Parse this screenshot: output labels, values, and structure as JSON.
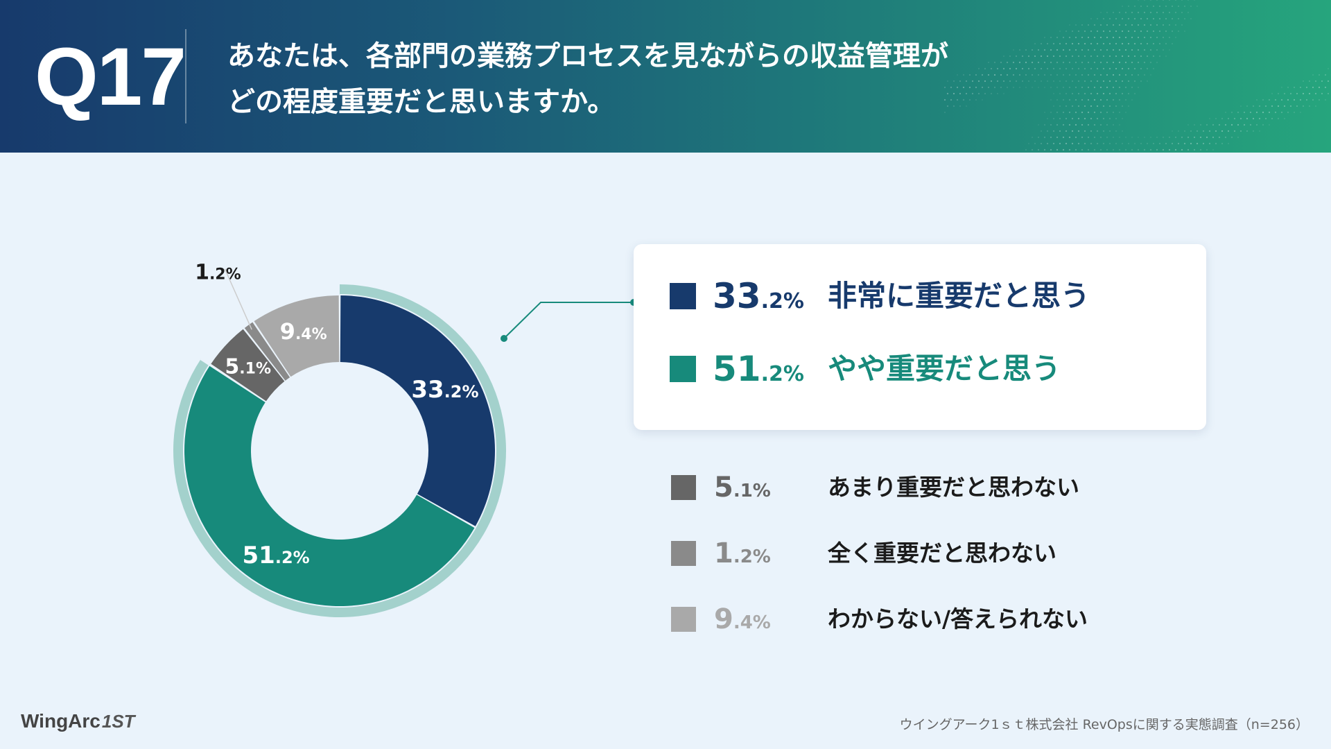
{
  "header": {
    "question_number": "Q17",
    "question_line1": "あなたは、各部門の業務プロセスを見ながらの収益管理が",
    "question_line2": "どの程度重要だと思いますか。"
  },
  "chart_data": {
    "type": "pie",
    "subtype": "donut",
    "categories": [
      "非常に重要だと思う",
      "やや重要だと思う",
      "あまり重要だと思わない",
      "全く重要だと思わない",
      "わからない/答えられない"
    ],
    "values": [
      33.2,
      51.2,
      5.1,
      1.2,
      9.4
    ],
    "unit": "%",
    "colors": [
      "#173a6c",
      "#178a7b",
      "#666666",
      "#8a8a8a",
      "#a9a9a9"
    ],
    "highlight_ring_color": "#a3d1cc",
    "highlighted_categories": [
      "非常に重要だと思う",
      "やや重要だと思う"
    ],
    "slice_labels": [
      {
        "int": "33",
        "dec": ".2%"
      },
      {
        "int": "51",
        "dec": ".2%"
      },
      {
        "int": "5",
        "dec": ".1%"
      },
      {
        "int": "1",
        "dec": ".2%"
      },
      {
        "int": "9",
        "dec": ".4%"
      }
    ],
    "legend": [
      {
        "int": "33",
        "dec": ".2%",
        "label": "非常に重要だと思う",
        "color": "#173a6c"
      },
      {
        "int": "51",
        "dec": ".2%",
        "label": "やや重要だと思う",
        "color": "#178a7b"
      },
      {
        "int": "5",
        "dec": ".1%",
        "label": "あまり重要だと思わない",
        "color": "#666666"
      },
      {
        "int": "1",
        "dec": ".2%",
        "label": "全く重要だと思わない",
        "color": "#8a8a8a"
      },
      {
        "int": "9",
        "dec": ".4%",
        "label": "わからない/答えられない",
        "color": "#a9a9a9"
      }
    ]
  },
  "footer": {
    "logo_text": "WingArc",
    "logo_mark": "1ST",
    "source": "ウイングアーク1ｓｔ株式会社 RevOpsに関する実態調査（n=256）"
  }
}
